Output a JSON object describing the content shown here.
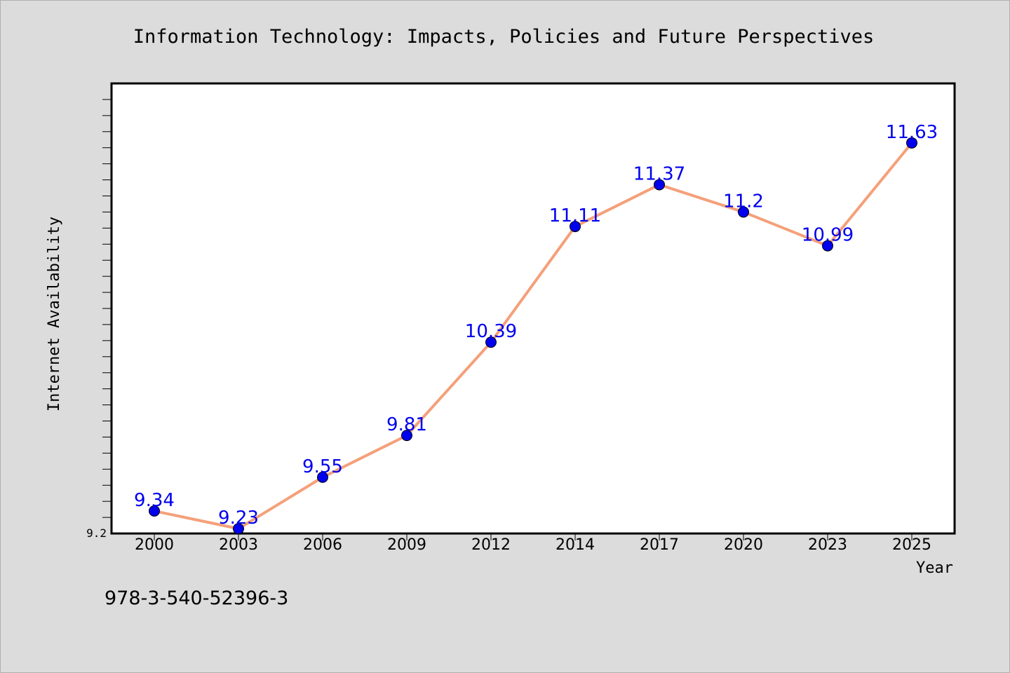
{
  "chart_data": {
    "type": "line",
    "title": "Information Technology: Impacts, Policies and Future Perspectives",
    "xlabel": "Year",
    "ylabel": "Internet Availability",
    "categories": [
      "2000",
      "2003",
      "2006",
      "2009",
      "2012",
      "2014",
      "2017",
      "2020",
      "2023",
      "2025"
    ],
    "series": [
      {
        "values": [
          9.34,
          9.23,
          9.55,
          9.81,
          10.39,
          11.11,
          11.37,
          11.2,
          10.99,
          11.63
        ]
      }
    ],
    "data_labels": [
      "9.34",
      "9.23",
      "9.55",
      "9.81",
      "10.39",
      "11.11",
      "11.37",
      "11.2",
      "10.99",
      "11.63"
    ],
    "ylim": [
      9.2,
      12.0
    ],
    "ytick_label": "9.2",
    "grid": false,
    "line_color": "#f4a07a",
    "marker_color": "#0000ee",
    "label_color": "#0000ee",
    "background_color": "#dcdcdc",
    "plot_background": "#ffffff"
  },
  "footnote": "978-3-540-52396-3"
}
